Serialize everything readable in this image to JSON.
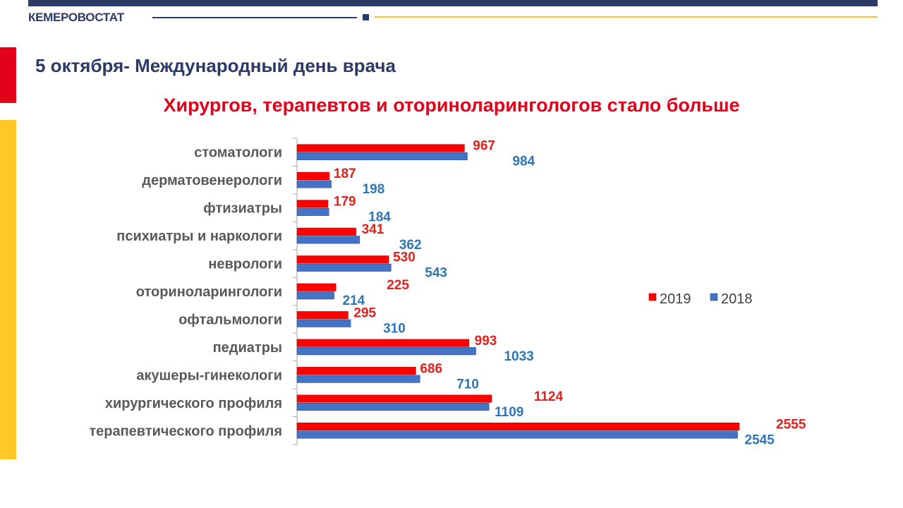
{
  "header": {
    "brand": "КЕМЕРОВОСТАТ",
    "heading": "5 октября- Международный день врача"
  },
  "colors": {
    "brand_navy": "#2b3a67",
    "accent_red": "#e2001a",
    "accent_gold": "#ffc829",
    "series_2019": "#ff0000",
    "series_2018": "#4472c4",
    "label_2019": "#e0201b",
    "label_2018": "#2e75b6"
  },
  "chart_data": {
    "type": "bar",
    "orientation": "horizontal",
    "title": "Хирургов, терапевтов и оториноларингологов стало больше",
    "categories": [
      "стоматологи",
      "дерматовенерологи",
      "фтизиатры",
      "психиатры и наркологи",
      "неврологи",
      "оториноларингологи",
      "офтальмологи",
      "педиатры",
      "акушеры-гинекологи",
      "хирургического профиля",
      "терапевтического профиля"
    ],
    "series": [
      {
        "name": "2019",
        "values": [
          967,
          187,
          179,
          341,
          530,
          225,
          295,
          993,
          686,
          1124,
          2555
        ]
      },
      {
        "name": "2018",
        "values": [
          984,
          198,
          184,
          362,
          543,
          214,
          310,
          1033,
          710,
          1109,
          2545
        ]
      }
    ],
    "xlim": [
      0,
      2555
    ],
    "legend": "right",
    "grid": false,
    "data_labels": true
  }
}
